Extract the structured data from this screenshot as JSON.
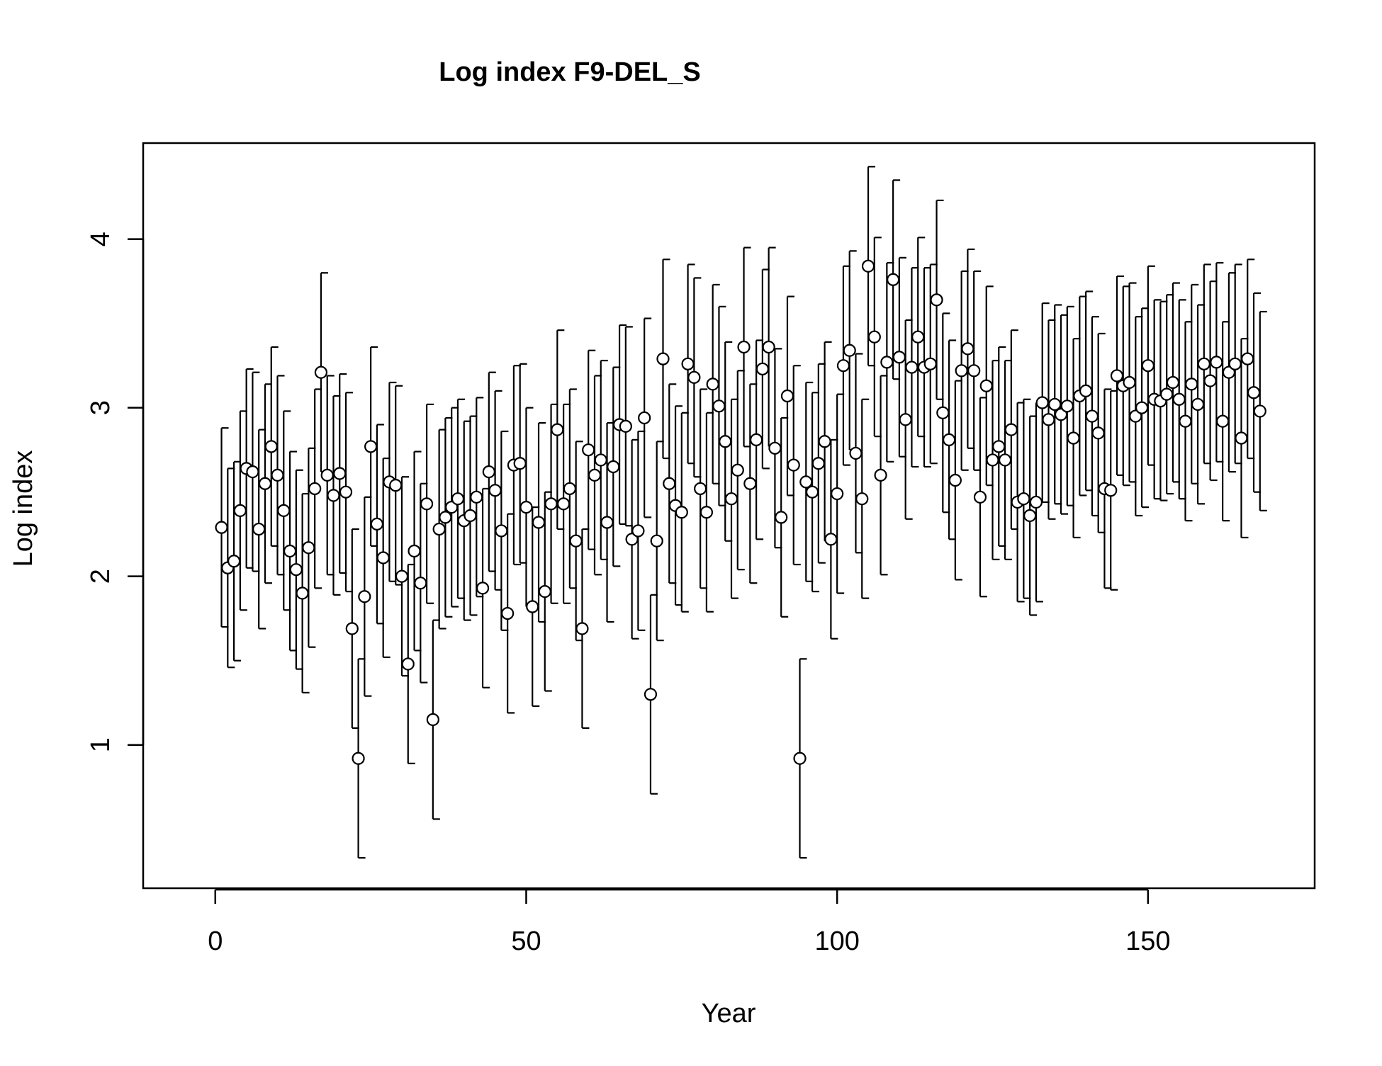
{
  "chart_data": {
    "type": "scatter",
    "title": "Log index F9-DEL_S",
    "xlabel": "Year",
    "ylabel": "Log index",
    "xlim": [
      -11.6,
      176.8
    ],
    "ylim": [
      0.15,
      4.57
    ],
    "xticks": [
      0,
      50,
      100,
      150
    ],
    "yticks": [
      1,
      2,
      3,
      4
    ],
    "grid": false,
    "legend": "none",
    "series": [
      {
        "x": [
          1,
          2,
          3,
          4,
          5,
          6,
          7,
          8,
          9,
          10,
          11,
          12,
          13,
          14,
          15,
          16,
          17,
          18,
          19,
          20,
          21,
          22,
          23,
          24,
          25,
          26,
          27,
          28,
          29,
          30,
          31,
          32,
          33,
          34,
          35,
          36,
          37,
          38,
          39,
          40,
          41,
          42,
          43,
          44,
          45,
          46,
          47,
          48,
          49,
          50,
          51,
          52,
          53,
          54,
          55,
          56,
          57,
          58,
          59,
          60,
          61,
          62,
          63,
          64,
          65,
          66,
          67,
          68,
          69,
          70,
          71,
          72,
          73,
          74,
          75,
          76,
          77,
          78,
          79,
          80,
          81,
          82,
          83,
          84,
          85,
          86,
          87,
          88,
          89,
          90,
          91,
          92,
          93,
          94,
          95,
          96,
          97,
          98,
          99,
          100,
          101,
          102,
          103,
          104,
          105,
          106,
          107,
          108,
          109,
          110,
          111,
          112,
          113,
          114,
          115,
          116,
          117,
          118,
          119,
          120,
          121,
          122,
          123,
          124,
          125,
          126,
          127,
          128,
          129,
          130,
          131,
          132,
          133,
          134,
          135,
          136,
          137,
          138,
          139,
          140,
          141,
          142,
          143,
          144,
          145,
          146,
          147,
          148,
          149,
          150,
          151,
          152,
          153,
          154,
          155,
          156,
          157,
          158,
          159,
          160,
          161,
          162,
          163,
          164,
          165,
          166,
          167,
          168
        ],
        "y": [
          2.29,
          2.05,
          2.09,
          2.39,
          2.64,
          2.62,
          2.28,
          2.55,
          2.77,
          2.6,
          2.39,
          2.15,
          2.04,
          1.9,
          2.17,
          2.52,
          3.21,
          2.6,
          2.48,
          2.61,
          2.5,
          1.69,
          0.92,
          1.88,
          2.77,
          2.31,
          2.11,
          2.56,
          2.54,
          2.0,
          1.48,
          2.15,
          1.96,
          2.43,
          1.15,
          2.28,
          2.35,
          2.41,
          2.46,
          2.33,
          2.36,
          2.47,
          1.93,
          2.62,
          2.51,
          2.27,
          1.78,
          2.66,
          2.67,
          2.41,
          1.82,
          2.32,
          1.91,
          2.43,
          2.87,
          2.43,
          2.52,
          2.21,
          1.69,
          2.75,
          2.6,
          2.69,
          2.32,
          2.65,
          2.9,
          2.89,
          2.22,
          2.27,
          2.94,
          1.3,
          2.21,
          3.29,
          2.55,
          2.42,
          2.38,
          3.26,
          3.18,
          2.52,
          2.38,
          3.14,
          3.01,
          2.8,
          2.46,
          2.63,
          3.36,
          2.55,
          2.81,
          3.23,
          3.36,
          2.76,
          2.35,
          3.07,
          2.66,
          0.92,
          2.56,
          2.5,
          2.67,
          2.8,
          2.22,
          2.49,
          3.25,
          3.34,
          2.73,
          2.46,
          3.84,
          3.42,
          2.6,
          3.27,
          3.76,
          3.3,
          2.93,
          3.24,
          3.42,
          3.24,
          3.26,
          3.64,
          2.97,
          2.81,
          2.57,
          3.22,
          3.35,
          3.22,
          2.47,
          3.13,
          2.69,
          2.77,
          2.69,
          2.87,
          2.44,
          2.46,
          2.36,
          2.44,
          3.03,
          2.93,
          3.02,
          2.96,
          3.01,
          2.82,
          3.07,
          3.1,
          2.95,
          2.85,
          2.52,
          2.51,
          3.19,
          3.13,
          3.15,
          2.95,
          3.0,
          3.25,
          3.05,
          3.04,
          3.08,
          3.15,
          3.05,
          2.92,
          3.14,
          3.02,
          3.26,
          3.16,
          3.27,
          2.92,
          3.21,
          3.26,
          2.82,
          3.29,
          3.09,
          2.98
        ],
        "err": [
          0.59,
          0.59,
          0.59,
          0.59,
          0.59,
          0.59,
          0.59,
          0.59,
          0.59,
          0.59,
          0.59,
          0.59,
          0.59,
          0.59,
          0.59,
          0.59,
          0.59,
          0.59,
          0.59,
          0.59,
          0.59,
          0.59,
          0.59,
          0.59,
          0.59,
          0.59,
          0.59,
          0.59,
          0.59,
          0.59,
          0.59,
          0.59,
          0.59,
          0.59,
          0.59,
          0.59,
          0.59,
          0.59,
          0.59,
          0.59,
          0.59,
          0.59,
          0.59,
          0.59,
          0.59,
          0.59,
          0.59,
          0.59,
          0.59,
          0.59,
          0.59,
          0.59,
          0.59,
          0.59,
          0.59,
          0.59,
          0.59,
          0.59,
          0.59,
          0.59,
          0.59,
          0.59,
          0.59,
          0.59,
          0.59,
          0.59,
          0.59,
          0.59,
          0.59,
          0.59,
          0.59,
          0.59,
          0.59,
          0.59,
          0.59,
          0.59,
          0.59,
          0.59,
          0.59,
          0.59,
          0.59,
          0.59,
          0.59,
          0.59,
          0.59,
          0.59,
          0.59,
          0.59,
          0.59,
          0.59,
          0.59,
          0.59,
          0.59,
          0.59,
          0.59,
          0.59,
          0.59,
          0.59,
          0.59,
          0.59,
          0.59,
          0.59,
          0.59,
          0.59,
          0.59,
          0.59,
          0.59,
          0.59,
          0.59,
          0.59,
          0.59,
          0.59,
          0.59,
          0.59,
          0.59,
          0.59,
          0.59,
          0.59,
          0.59,
          0.59,
          0.59,
          0.59,
          0.59,
          0.59,
          0.59,
          0.59,
          0.59,
          0.59,
          0.59,
          0.59,
          0.59,
          0.59,
          0.59,
          0.59,
          0.59,
          0.59,
          0.59,
          0.59,
          0.59,
          0.59,
          0.59,
          0.59,
          0.59,
          0.59,
          0.59,
          0.59,
          0.59,
          0.59,
          0.59,
          0.59,
          0.59,
          0.59,
          0.59,
          0.59,
          0.59,
          0.59,
          0.59,
          0.59,
          0.59,
          0.59,
          0.59,
          0.59,
          0.59,
          0.59,
          0.59,
          0.59,
          0.59,
          0.59
        ]
      }
    ]
  }
}
